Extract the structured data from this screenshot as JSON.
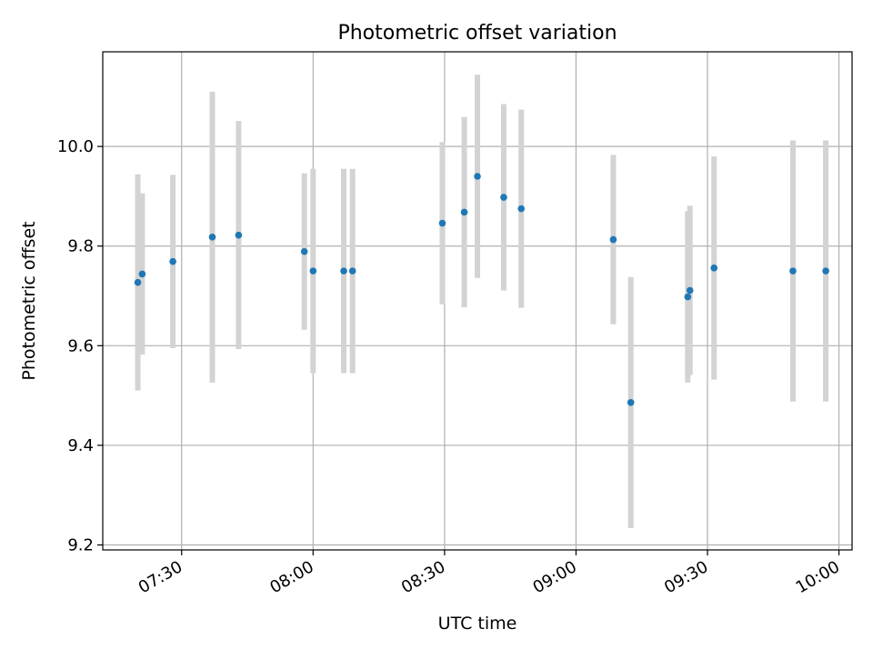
{
  "chart_data": {
    "type": "scatter",
    "title": "Photometric offset variation",
    "xlabel": "UTC time",
    "ylabel": "Photometric offset",
    "x_ticks": [
      "07:30",
      "08:00",
      "08:30",
      "09:00",
      "09:30",
      "10:00"
    ],
    "y_ticks": [
      "9.2",
      "9.4",
      "9.6",
      "9.8",
      "10.0"
    ],
    "xlim": [
      "07:12",
      "10:03"
    ],
    "ylim": [
      9.19,
      10.19
    ],
    "grid": true,
    "colors": {
      "point": "#1f77b4",
      "errorbar": "#d3d3d3",
      "grid": "#b0b0b0"
    },
    "points": [
      {
        "x": "07:20:00",
        "y": 9.727,
        "yerr": 0.217
      },
      {
        "x": "07:21:00",
        "y": 9.744,
        "yerr": 0.162
      },
      {
        "x": "07:28:00",
        "y": 9.769,
        "yerr": 0.174
      },
      {
        "x": "07:37:00",
        "y": 9.818,
        "yerr": 0.292
      },
      {
        "x": "07:43:00",
        "y": 9.822,
        "yerr": 0.229
      },
      {
        "x": "07:58:00",
        "y": 9.789,
        "yerr": 0.157
      },
      {
        "x": "08:00:00",
        "y": 9.75,
        "yerr": 0.205
      },
      {
        "x": "08:07:00",
        "y": 9.75,
        "yerr": 0.205
      },
      {
        "x": "08:09:00",
        "y": 9.75,
        "yerr": 0.205
      },
      {
        "x": "08:29:30",
        "y": 9.846,
        "yerr": 0.163
      },
      {
        "x": "08:34:30",
        "y": 9.868,
        "yerr": 0.191
      },
      {
        "x": "08:37:30",
        "y": 9.94,
        "yerr": 0.204
      },
      {
        "x": "08:43:30",
        "y": 9.898,
        "yerr": 0.187
      },
      {
        "x": "08:47:30",
        "y": 9.875,
        "yerr": 0.199
      },
      {
        "x": "09:08:30",
        "y": 9.813,
        "yerr": 0.17
      },
      {
        "x": "09:12:30",
        "y": 9.486,
        "yerr": 0.252
      },
      {
        "x": "09:25:30",
        "y": 9.698,
        "yerr": 0.172
      },
      {
        "x": "09:26:00",
        "y": 9.711,
        "yerr": 0.17
      },
      {
        "x": "09:31:30",
        "y": 9.756,
        "yerr": 0.224
      },
      {
        "x": "09:49:30",
        "y": 9.75,
        "yerr": 0.262
      },
      {
        "x": "09:57:00",
        "y": 9.75,
        "yerr": 0.262
      }
    ]
  }
}
